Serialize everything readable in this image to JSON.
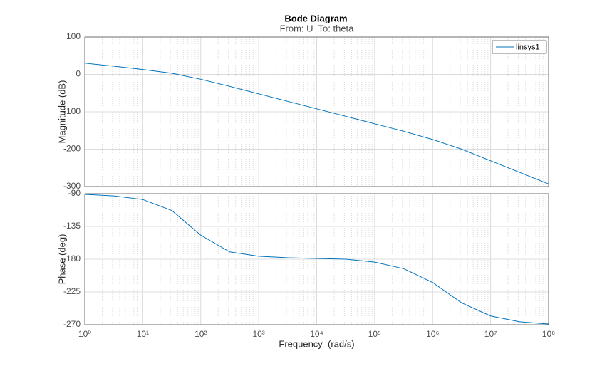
{
  "chart_data": [
    {
      "type": "line",
      "title": "Bode Diagram",
      "subtitle": "From: U  To: theta",
      "ylabel": "Magnitude (dB)",
      "x": [
        1,
        3.16,
        10,
        31.6,
        100,
        316,
        1000,
        3162,
        10000,
        31623,
        100000,
        316228,
        1000000,
        3162278,
        10000000,
        31622777,
        100000000
      ],
      "series": [
        {
          "name": "linsys1",
          "color": "#0072bd",
          "values": [
            30,
            22,
            13,
            3,
            -13,
            -32,
            -52,
            -72,
            -92,
            -112,
            -132,
            -152,
            -174,
            -200,
            -231,
            -262,
            -293
          ]
        }
      ],
      "xlim": [
        1,
        100000000
      ],
      "xlog": true,
      "ylim": [
        -300,
        100
      ],
      "yticks": [
        -300,
        -200,
        -100,
        0,
        100
      ],
      "grid": true,
      "minor_grid": true,
      "legend": "top-right"
    },
    {
      "type": "line",
      "ylabel": "Phase (deg)",
      "xlabel": "Frequency  (rad/s)",
      "x": [
        1,
        3.16,
        10,
        31.6,
        100,
        316,
        1000,
        3162,
        10000,
        31623,
        100000,
        316228,
        1000000,
        3162278,
        10000000,
        31622777,
        100000000
      ],
      "series": [
        {
          "color": "#0072bd",
          "values": [
            -91,
            -93,
            -98,
            -113,
            -147,
            -170,
            -176,
            -178,
            -179,
            -180,
            -184,
            -193,
            -212,
            -240,
            -258,
            -266,
            -269
          ]
        }
      ],
      "xlim": [
        1,
        100000000
      ],
      "xlog": true,
      "xticks": [
        {
          "value": 1,
          "label": "10⁰"
        },
        {
          "value": 10,
          "label": "10¹"
        },
        {
          "value": 100,
          "label": "10²"
        },
        {
          "value": 1000,
          "label": "10³"
        },
        {
          "value": 10000,
          "label": "10⁴"
        },
        {
          "value": 100000,
          "label": "10⁵"
        },
        {
          "value": 1000000,
          "label": "10⁶"
        },
        {
          "value": 10000000,
          "label": "10⁷"
        },
        {
          "value": 100000000,
          "label": "10⁸"
        }
      ],
      "ylim": [
        -270,
        -90
      ],
      "yticks": [
        -270,
        -225,
        -180,
        -135,
        -90
      ],
      "grid": true,
      "minor_grid": true
    }
  ]
}
